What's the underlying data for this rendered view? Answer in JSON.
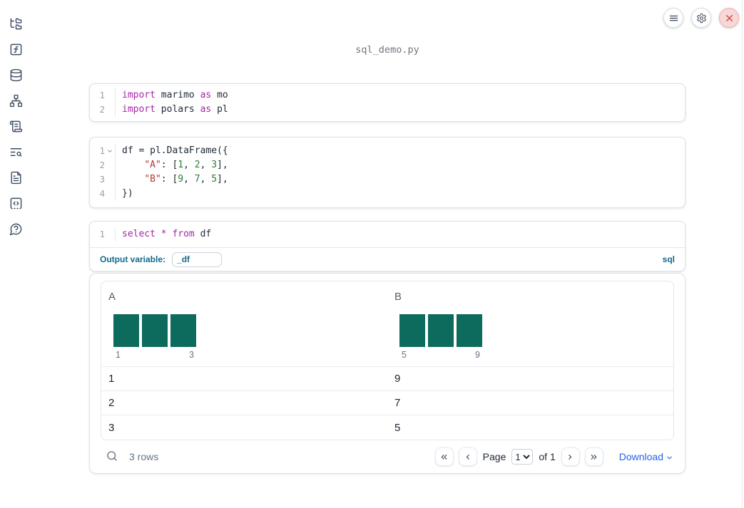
{
  "app": {
    "filename": "sql_demo.py"
  },
  "topbar": {
    "buttons": [
      {
        "name": "notebook-menu",
        "icon": "menu-icon"
      },
      {
        "name": "settings",
        "icon": "gear-icon"
      },
      {
        "name": "shutdown",
        "icon": "close-x-icon"
      }
    ],
    "close_color": "#D64949"
  },
  "sidebar": {
    "icons": [
      "file-tree-icon",
      "function-square-icon",
      "database-icon",
      "dependency-graph-icon",
      "scratchpad-scroll-icon",
      "logs-search-icon",
      "documentation-file-icon",
      "snippets-code-icon",
      "help-question-bubble-icon"
    ]
  },
  "cells": [
    {
      "name": "imports-cell",
      "lines": [
        {
          "num": "1",
          "tokens": [
            [
              "kw",
              "import"
            ],
            [
              "pl",
              " marimo "
            ],
            [
              "kw",
              "as"
            ],
            [
              "pl",
              " mo"
            ]
          ]
        },
        {
          "num": "2",
          "tokens": [
            [
              "kw",
              "import"
            ],
            [
              "pl",
              " polars "
            ],
            [
              "kw",
              "as"
            ],
            [
              "pl",
              " pl"
            ]
          ]
        }
      ]
    },
    {
      "name": "dataframe-cell",
      "lines": [
        {
          "num": "1",
          "fold": true,
          "tokens": [
            [
              "pl",
              "df = pl.DataFrame({"
            ]
          ]
        },
        {
          "num": "2",
          "tokens": [
            [
              "pl",
              "    "
            ],
            [
              "str",
              "\"A\""
            ],
            [
              "pl",
              ": ["
            ],
            [
              "num",
              "1"
            ],
            [
              "pl",
              ", "
            ],
            [
              "num",
              "2"
            ],
            [
              "pl",
              ", "
            ],
            [
              "num",
              "3"
            ],
            [
              "pl",
              "],"
            ]
          ]
        },
        {
          "num": "3",
          "tokens": [
            [
              "pl",
              "    "
            ],
            [
              "str",
              "\"B\""
            ],
            [
              "pl",
              ": ["
            ],
            [
              "num",
              "9"
            ],
            [
              "pl",
              ", "
            ],
            [
              "num",
              "7"
            ],
            [
              "pl",
              ", "
            ],
            [
              "num",
              "5"
            ],
            [
              "pl",
              "],"
            ]
          ]
        },
        {
          "num": "4",
          "tokens": [
            [
              "pl",
              "})"
            ]
          ]
        }
      ]
    },
    {
      "name": "sql-cell",
      "lines": [
        {
          "num": "1",
          "tokens": [
            [
              "kw",
              "select"
            ],
            [
              "pl",
              " "
            ],
            [
              "kw",
              "*"
            ],
            [
              "pl",
              " "
            ],
            [
              "kw",
              "from"
            ],
            [
              "pl",
              " df"
            ]
          ]
        }
      ]
    }
  ],
  "sql_cell": {
    "output_variable_label": "Output variable:",
    "output_variable_value": "_df",
    "language_badge": "sql"
  },
  "table": {
    "columns": [
      {
        "header": "A",
        "histogram": {
          "bars": [
            1,
            1,
            1
          ],
          "min_label": "1",
          "max_label": "3"
        }
      },
      {
        "header": "B",
        "histogram": {
          "bars": [
            1,
            1,
            1
          ],
          "min_label": "5",
          "max_label": "9"
        }
      }
    ],
    "rows": [
      [
        "1",
        "9"
      ],
      [
        "2",
        "7"
      ],
      [
        "3",
        "5"
      ]
    ],
    "bar_color": "#0D6B5E"
  },
  "table_footer": {
    "row_count": "3 rows",
    "page_label": "Page",
    "page_value": "1",
    "of_label": "of 1",
    "download_label": "Download"
  },
  "colors": {
    "keyword": "#A626A4",
    "string": "#B03A34",
    "number": "#2E7D32",
    "sql_accent": "#14698C",
    "download_link": "#2563EB"
  }
}
